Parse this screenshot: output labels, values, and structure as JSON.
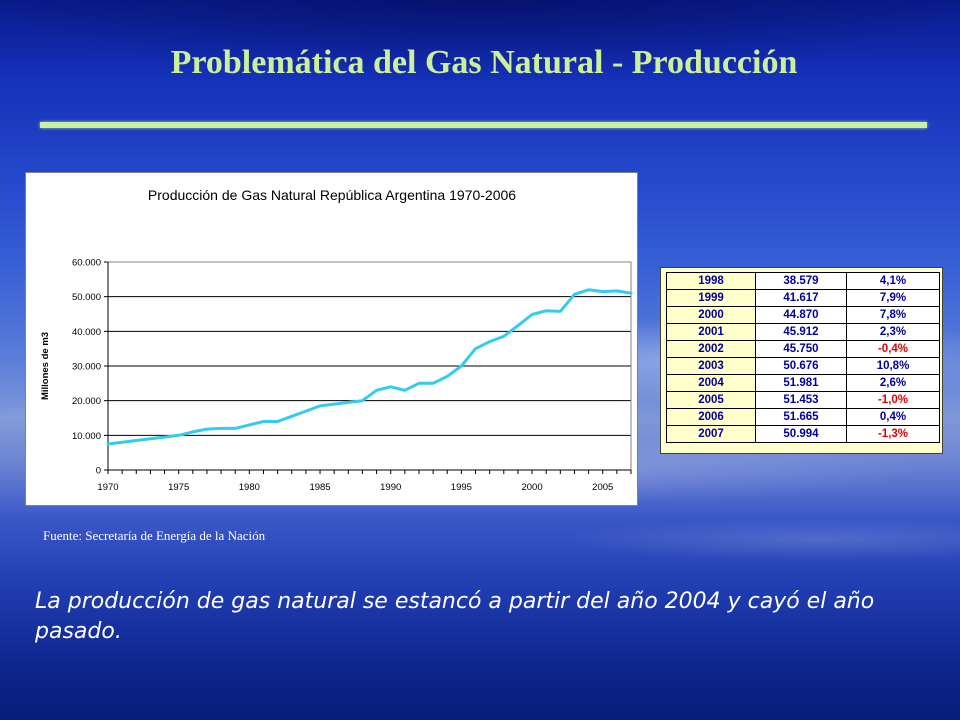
{
  "slide": {
    "title": "Problemática del Gas Natural - Producción",
    "source": "Fuente: Secretaría de Energía de la Nación",
    "caption": "La producción de gas natural se estancó a partir del año 2004 y cayó el año pasado."
  },
  "colors": {
    "title": "#ccf09a",
    "rule": "#c8f0a0",
    "line": "#33ccee",
    "table_text": "#0000a0",
    "table_negative": "#e00000",
    "table_year_bg": "#ffffcc"
  },
  "chart_data": {
    "type": "line",
    "title": "Producción de Gas Natural República Argentina 1970-2006",
    "xlabel": "",
    "ylabel": "Millones de m3",
    "xlim": [
      1970,
      2007
    ],
    "ylim": [
      0,
      60000
    ],
    "grid": true,
    "legend": "none",
    "y_ticks": [
      0,
      10000,
      20000,
      30000,
      40000,
      50000,
      60000
    ],
    "y_tick_labels": [
      "0",
      "10.000",
      "20.000",
      "30.000",
      "40.000",
      "50.000",
      "60.000"
    ],
    "x_ticks": [
      1970,
      1975,
      1980,
      1985,
      1990,
      1995,
      2000,
      2005
    ],
    "x_tick_labels": [
      "1970",
      "1975",
      "1980",
      "1985",
      "1990",
      "1995",
      "2000",
      "2005"
    ],
    "series": [
      {
        "x": [
          1970,
          1971,
          1972,
          1973,
          1974,
          1975,
          1976,
          1977,
          1978,
          1979,
          1980,
          1981,
          1982,
          1983,
          1984,
          1985,
          1986,
          1987,
          1988,
          1989,
          1990,
          1991,
          1992,
          1993,
          1994,
          1995,
          1996,
          1997,
          1998,
          1999,
          2000,
          2001,
          2002,
          2003,
          2004,
          2005,
          2006,
          2007
        ],
        "values": [
          7500,
          8000,
          8500,
          9000,
          9500,
          10000,
          11000,
          11800,
          12000,
          12000,
          13000,
          14000,
          14000,
          15500,
          17000,
          18500,
          19000,
          19500,
          20000,
          23000,
          24000,
          23000,
          25000,
          25000,
          27000,
          30000,
          35000,
          37000,
          38579,
          41617,
          44870,
          45912,
          45750,
          50676,
          51981,
          51453,
          51665,
          50994
        ]
      }
    ]
  },
  "table": {
    "rows": [
      {
        "year": "1998",
        "value": "38.579",
        "pct": "4,1%",
        "negative": false
      },
      {
        "year": "1999",
        "value": "41.617",
        "pct": "7,9%",
        "negative": false
      },
      {
        "year": "2000",
        "value": "44.870",
        "pct": "7,8%",
        "negative": false
      },
      {
        "year": "2001",
        "value": "45.912",
        "pct": "2,3%",
        "negative": false
      },
      {
        "year": "2002",
        "value": "45.750",
        "pct": "-0,4%",
        "negative": true
      },
      {
        "year": "2003",
        "value": "50.676",
        "pct": "10,8%",
        "negative": false
      },
      {
        "year": "2004",
        "value": "51.981",
        "pct": "2,6%",
        "negative": false
      },
      {
        "year": "2005",
        "value": "51.453",
        "pct": "-1,0%",
        "negative": true
      },
      {
        "year": "2006",
        "value": "51.665",
        "pct": "0,4%",
        "negative": false
      },
      {
        "year": "2007",
        "value": "50.994",
        "pct": "-1,3%",
        "negative": true
      }
    ]
  }
}
